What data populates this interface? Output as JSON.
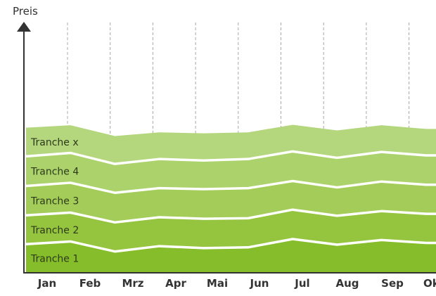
{
  "chart_data": {
    "type": "area",
    "ylabel": "Preis",
    "xlabel": "",
    "categories": [
      "Jan",
      "Feb",
      "Mrz",
      "Apr",
      "Mai",
      "Jun",
      "Jul",
      "Aug",
      "Sep",
      "Okt"
    ],
    "ylim": [
      0,
      100
    ],
    "grid": "vertical-dashed",
    "series": [
      {
        "name": "Tranche 1",
        "color": "#86bd2a",
        "values": [
          11.7,
          12.8,
          8.7,
          10.9,
          10.1,
          10.4,
          13.8,
          11.5,
          13.4,
          12.2
        ]
      },
      {
        "name": "Tranche 2",
        "color": "#95c43f",
        "values": [
          23.5,
          24.6,
          20.6,
          22.7,
          22.1,
          22.3,
          25.8,
          23.3,
          25.2,
          24.1
        ]
      },
      {
        "name": "Tranche 3",
        "color": "#a3cc58",
        "values": [
          35.5,
          36.8,
          32.7,
          34.6,
          34.2,
          34.6,
          37.5,
          34.9,
          37.3,
          36.0
        ]
      },
      {
        "name": "Tranche 4",
        "color": "#acd26c",
        "values": [
          47.6,
          49.0,
          44.5,
          46.5,
          45.9,
          46.5,
          49.6,
          47.0,
          49.4,
          48.0
        ]
      },
      {
        "name": "Tranche x",
        "color": "#b4d67c",
        "values": [
          59.3,
          60.3,
          55.9,
          57.4,
          57.0,
          57.4,
          60.5,
          58.2,
          60.3,
          58.8
        ]
      }
    ]
  }
}
